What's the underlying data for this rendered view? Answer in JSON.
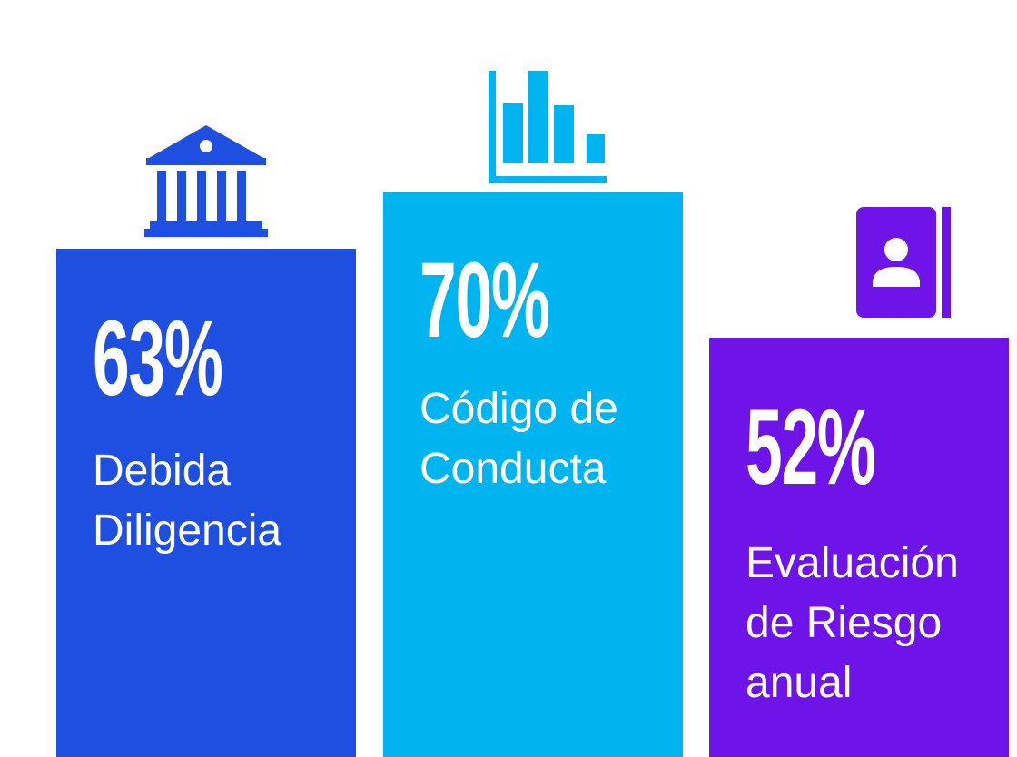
{
  "chart_data": {
    "type": "bar",
    "title": "",
    "xlabel": "",
    "ylabel": "",
    "ylim": [
      0,
      100
    ],
    "bars": [
      {
        "value": 63,
        "value_label": "63%",
        "label": "Debida\nDiligencia",
        "color": "#1f4fe0",
        "icon": "bank-icon"
      },
      {
        "value": 70,
        "value_label": "70%",
        "label": "Código de\nConducta",
        "color": "#00b4f0",
        "icon": "bar-chart-icon"
      },
      {
        "value": 52,
        "value_label": "52%",
        "label": "Evaluación\nde Riesgo\nanual",
        "color": "#6f14e8",
        "icon": "contact-book-icon"
      }
    ]
  }
}
